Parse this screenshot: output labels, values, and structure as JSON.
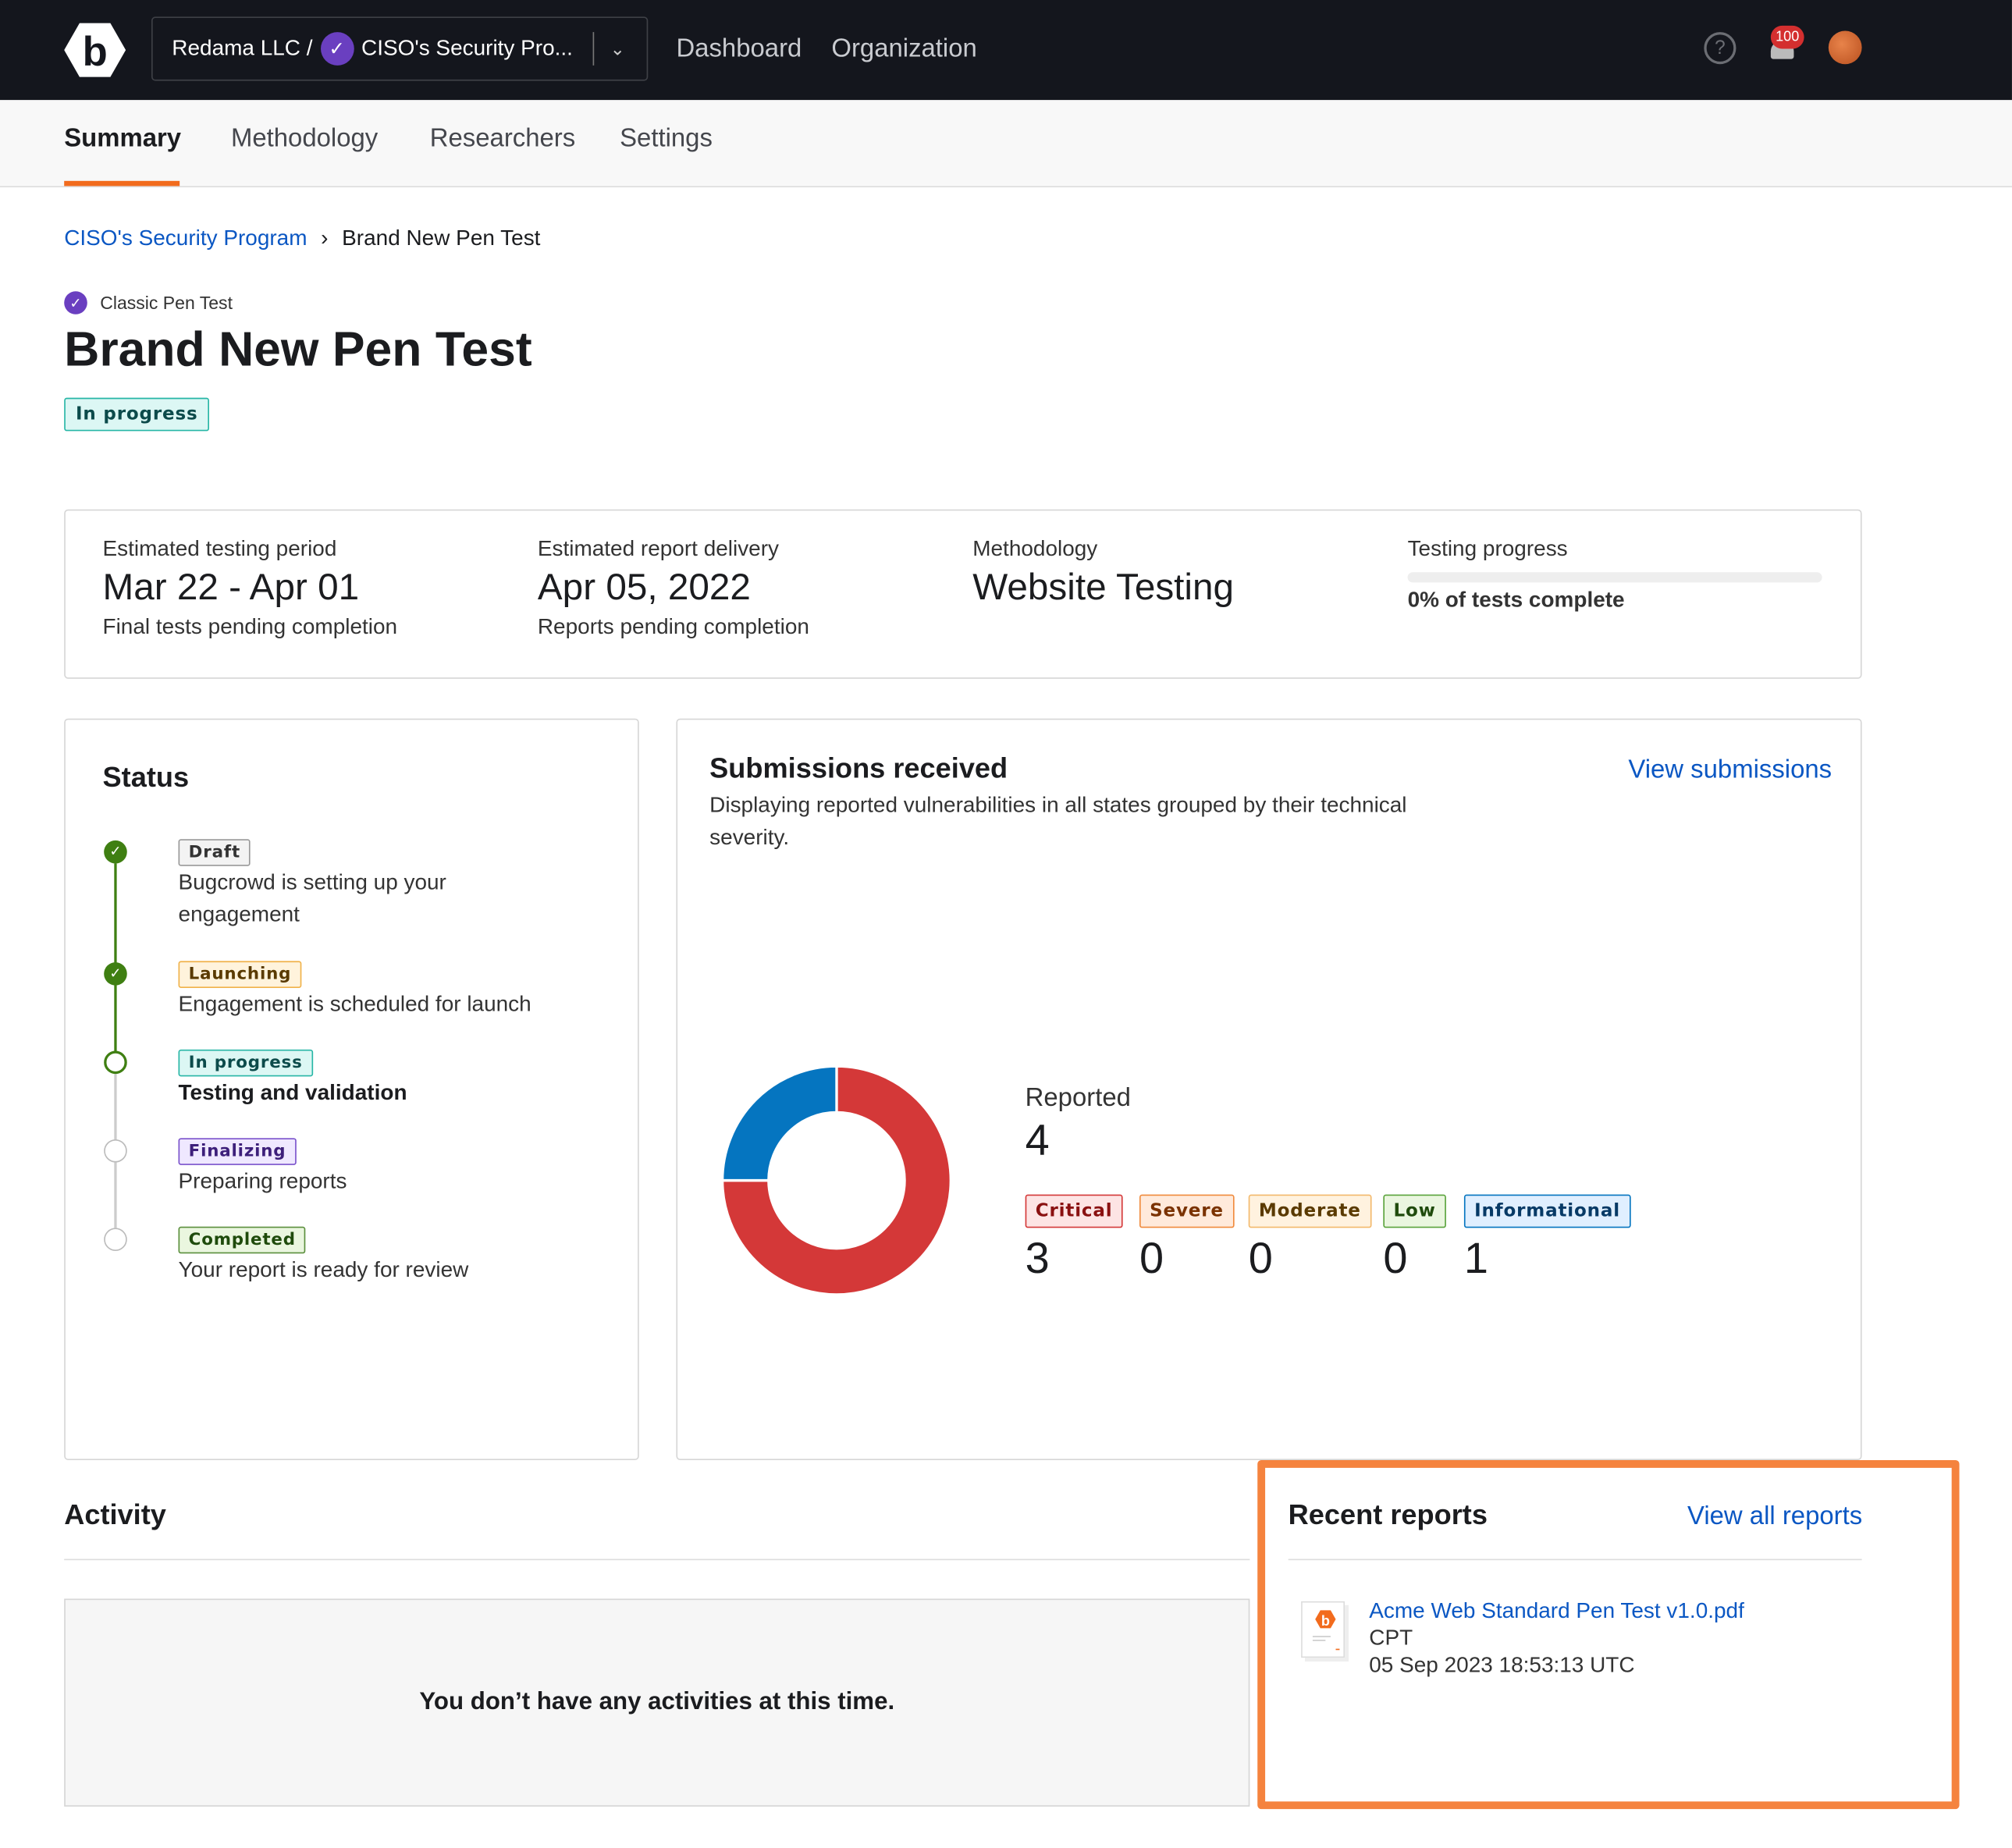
{
  "topbar": {
    "org": "Redama LLC /",
    "program": "CISO's Security Pro...",
    "nav": [
      "Dashboard",
      "Organization"
    ],
    "notification_count": "100"
  },
  "tabs": [
    "Summary",
    "Methodology",
    "Researchers",
    "Settings"
  ],
  "breadcrumb": {
    "parent": "CISO's Security Program",
    "current": "Brand New Pen Test"
  },
  "header": {
    "type": "Classic Pen Test",
    "title": "Brand New Pen Test",
    "status": "In progress"
  },
  "info": [
    {
      "label": "Estimated testing period",
      "value": "Mar 22 - Apr 01",
      "sub": "Final tests pending completion"
    },
    {
      "label": "Estimated report delivery",
      "value": "Apr 05, 2022",
      "sub": "Reports pending completion"
    },
    {
      "label": "Methodology",
      "value": "Website Testing"
    },
    {
      "label": "Testing progress",
      "progress_percent": 0,
      "sub": "0% of tests complete"
    }
  ],
  "status": {
    "title": "Status",
    "steps": [
      {
        "badge": "Draft",
        "desc": "Bugcrowd is setting up your engagement",
        "state": "done"
      },
      {
        "badge": "Launching",
        "desc": "Engagement is scheduled for launch",
        "state": "done"
      },
      {
        "badge": "In progress",
        "desc": "Testing and validation",
        "state": "current"
      },
      {
        "badge": "Finalizing",
        "desc": "Preparing reports",
        "state": "pending"
      },
      {
        "badge": "Completed",
        "desc": "Your report is ready for review",
        "state": "pending"
      }
    ]
  },
  "submissions": {
    "title": "Submissions received",
    "view_link": "View submissions",
    "desc": "Displaying reported vulnerabilities in all states grouped by their technical severity.",
    "reported_label": "Reported",
    "reported_total": "4",
    "severities": [
      {
        "name": "Critical",
        "count": "3",
        "color": "#d43838"
      },
      {
        "name": "Severe",
        "count": "0",
        "color": "#f08a3c"
      },
      {
        "name": "Moderate",
        "count": "0",
        "color": "#f3b96b"
      },
      {
        "name": "Low",
        "count": "0",
        "color": "#5aa33c"
      },
      {
        "name": "Informational",
        "count": "1",
        "color": "#0575c0"
      }
    ]
  },
  "chart_data": {
    "type": "pie",
    "categories": [
      "Critical",
      "Severe",
      "Moderate",
      "Low",
      "Informational"
    ],
    "values": [
      3,
      0,
      0,
      0,
      1
    ],
    "title": ""
  },
  "activity": {
    "title": "Activity",
    "empty": "You don’t have any activities at this time."
  },
  "reports": {
    "title": "Recent reports",
    "view_all": "View all reports",
    "items": [
      {
        "name": "Acme Web Standard Pen Test v1.0.pdf",
        "type": "CPT",
        "date": "05 Sep 2023 18:53:13 UTC"
      }
    ]
  }
}
